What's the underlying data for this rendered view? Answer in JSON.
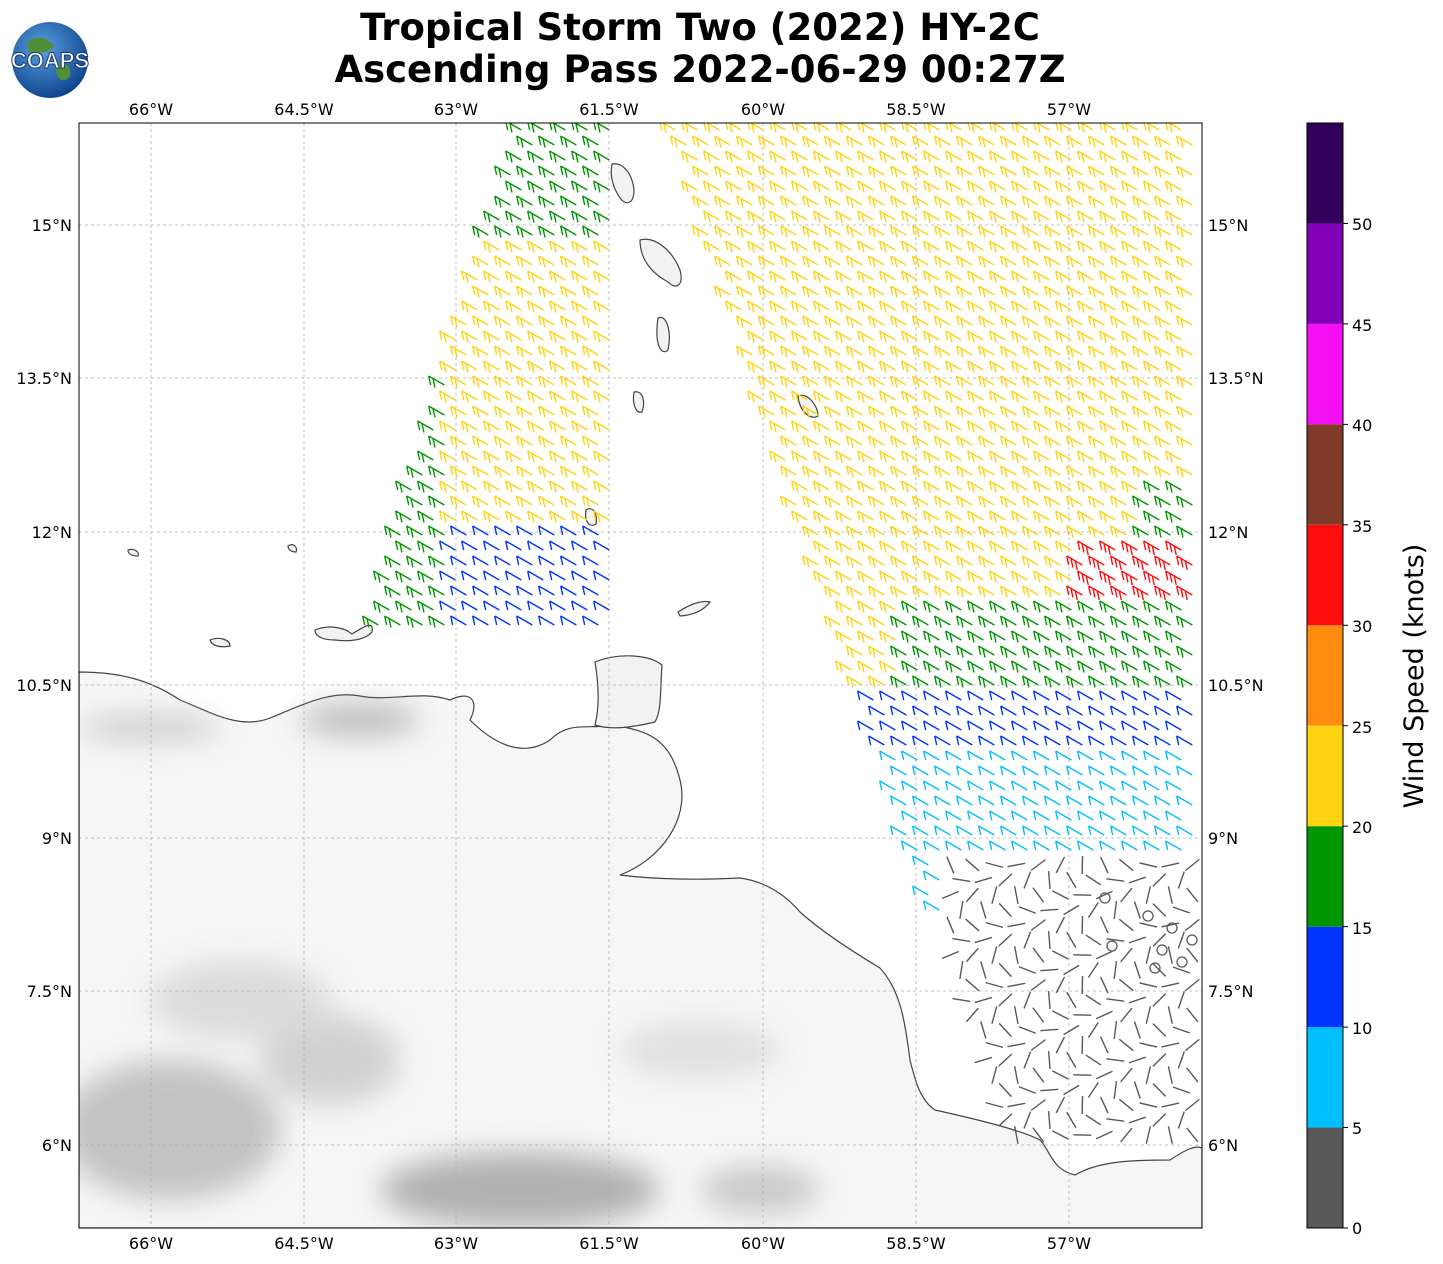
{
  "title": {
    "line1": "Tropical Storm Two (2022) HY-2C",
    "line2": "Ascending Pass 2022-06-29 00:27Z"
  },
  "logo": {
    "text": "COAPS",
    "icon": "globe-icon"
  },
  "map": {
    "lon_ticks": [
      "66°W",
      "64.5°W",
      "63°W",
      "61.5°W",
      "60°W",
      "58.5°W",
      "57°W"
    ],
    "lat_ticks": [
      "15°N",
      "13.5°N",
      "12°N",
      "10.5°N",
      "9°N",
      "7.5°N",
      "6°N"
    ],
    "lon_range": [
      -66.7,
      -55.7
    ],
    "lat_range": [
      5.2,
      16.0
    ],
    "gridlines": true,
    "background": "terrain-grayscale"
  },
  "colorbar": {
    "label": "Wind Speed (knots)",
    "ticks": [
      "0",
      "5",
      "10",
      "15",
      "20",
      "25",
      "30",
      "35",
      "40",
      "45",
      "50"
    ],
    "range": [
      0,
      55
    ],
    "bins": [
      {
        "min": 0,
        "max": 5,
        "color": "#585858"
      },
      {
        "min": 5,
        "max": 10,
        "color": "#00bfff"
      },
      {
        "min": 10,
        "max": 15,
        "color": "#0033ff"
      },
      {
        "min": 15,
        "max": 20,
        "color": "#009600"
      },
      {
        "min": 20,
        "max": 25,
        "color": "#ffd30f"
      },
      {
        "min": 25,
        "max": 30,
        "color": "#ff8c0f"
      },
      {
        "min": 30,
        "max": 35,
        "color": "#ff0d0d"
      },
      {
        "min": 35,
        "max": 40,
        "color": "#803c28"
      },
      {
        "min": 40,
        "max": 45,
        "color": "#f50ff5"
      },
      {
        "min": 45,
        "max": 50,
        "color": "#8200b8"
      },
      {
        "min": 50,
        "max": 55,
        "color": "#32005a"
      }
    ]
  }
}
